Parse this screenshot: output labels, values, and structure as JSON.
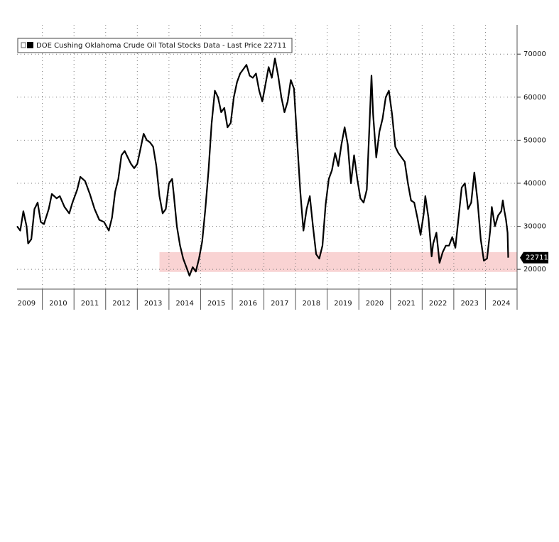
{
  "chart_data": {
    "type": "line",
    "legend_text": "DOE Cushing Oklahoma Crude Oil Total Stocks Data - Last Price 22711",
    "last_price": 22711,
    "series": [
      {
        "name": "DOE Cushing Oklahoma Crude Oil Total Stocks Data",
        "color": "#000000",
        "x": [
          2009.2,
          2009.3,
          2009.4,
          2009.5,
          2009.55,
          2009.65,
          2009.75,
          2009.85,
          2009.95,
          2010.05,
          2010.2,
          2010.3,
          2010.45,
          2010.55,
          2010.7,
          2010.85,
          2010.95,
          2011.1,
          2011.2,
          2011.35,
          2011.5,
          2011.65,
          2011.8,
          2011.95,
          2012.1,
          2012.2,
          2012.3,
          2012.4,
          2012.5,
          2012.6,
          2012.7,
          2012.8,
          2012.9,
          2013.0,
          2013.1,
          2013.2,
          2013.3,
          2013.4,
          2013.5,
          2013.6,
          2013.7,
          2013.8,
          2013.9,
          2014.0,
          2014.1,
          2014.15,
          2014.25,
          2014.35,
          2014.45,
          2014.55,
          2014.65,
          2014.75,
          2014.85,
          2014.95,
          2015.05,
          2015.15,
          2015.25,
          2015.35,
          2015.45,
          2015.55,
          2015.65,
          2015.75,
          2015.85,
          2015.95,
          2016.05,
          2016.15,
          2016.25,
          2016.35,
          2016.45,
          2016.55,
          2016.65,
          2016.75,
          2016.85,
          2016.95,
          2017.05,
          2017.15,
          2017.25,
          2017.35,
          2017.45,
          2017.55,
          2017.65,
          2017.75,
          2017.85,
          2017.95,
          2018.05,
          2018.15,
          2018.25,
          2018.35,
          2018.45,
          2018.55,
          2018.65,
          2018.75,
          2018.85,
          2018.95,
          2019.05,
          2019.15,
          2019.25,
          2019.35,
          2019.45,
          2019.55,
          2019.65,
          2019.75,
          2019.85,
          2019.95,
          2020.05,
          2020.15,
          2020.25,
          2020.35,
          2020.4,
          2020.45,
          2020.55,
          2020.65,
          2020.75,
          2020.85,
          2020.95,
          2021.05,
          2021.15,
          2021.25,
          2021.35,
          2021.45,
          2021.55,
          2021.65,
          2021.75,
          2021.85,
          2021.95,
          2022.05,
          2022.1,
          2022.2,
          2022.3,
          2022.35,
          2022.45,
          2022.55,
          2022.65,
          2022.75,
          2022.85,
          2022.95,
          2023.05,
          2023.15,
          2023.25,
          2023.35,
          2023.45,
          2023.55,
          2023.65,
          2023.75,
          2023.85,
          2023.95,
          2024.05,
          2024.15,
          2024.2,
          2024.3,
          2024.4,
          2024.5,
          2024.55,
          2024.6,
          2024.65,
          2024.7,
          2024.72
        ],
        "values": [
          30000,
          29000,
          33500,
          30000,
          26000,
          27000,
          34000,
          35500,
          31000,
          30500,
          34000,
          37500,
          36500,
          37000,
          34500,
          33000,
          35500,
          38500,
          41500,
          40500,
          37500,
          34000,
          31500,
          31000,
          29000,
          32000,
          38000,
          41000,
          46500,
          47500,
          46000,
          44500,
          43500,
          44500,
          48000,
          51500,
          50000,
          49500,
          48500,
          44000,
          37000,
          33000,
          34000,
          40000,
          41000,
          37500,
          30000,
          25500,
          22500,
          20500,
          18500,
          20500,
          19500,
          22500,
          26500,
          34000,
          43000,
          54000,
          61500,
          60000,
          56500,
          57500,
          53000,
          54000,
          60000,
          63500,
          65500,
          66500,
          67500,
          65000,
          64500,
          65500,
          61500,
          59000,
          63000,
          67000,
          64500,
          69000,
          65000,
          60000,
          56500,
          59000,
          64000,
          62000,
          50000,
          38000,
          29000,
          34000,
          37000,
          30000,
          23500,
          22500,
          25500,
          35000,
          41000,
          43000,
          47000,
          44000,
          49000,
          53000,
          49000,
          40000,
          46500,
          41000,
          36500,
          35500,
          38500,
          56000,
          65000,
          56000,
          46000,
          52000,
          55000,
          60000,
          61500,
          56000,
          48500,
          47000,
          46000,
          45000,
          40000,
          36000,
          35500,
          32000,
          28000,
          33000,
          37000,
          32000,
          23000,
          26000,
          28500,
          21500,
          24000,
          25500,
          25500,
          27500,
          25000,
          32000,
          39000,
          40000,
          34000,
          35500,
          42500,
          36000,
          27000,
          22000,
          22500,
          29000,
          34500,
          30000,
          32500,
          33500,
          36000,
          33500,
          31500,
          28500,
          22711
        ]
      }
    ],
    "highlight": {
      "x": [
        2013.7,
        2025
      ],
      "y": [
        19400,
        24000
      ],
      "color": "#f9d3d3"
    },
    "xlim": [
      2009.2,
      2025
    ],
    "xticks": [
      {
        "value": 2009.5,
        "label": "2009"
      },
      {
        "value": 2010.5,
        "label": "2010"
      },
      {
        "value": 2011.5,
        "label": "2011"
      },
      {
        "value": 2012.5,
        "label": "2012"
      },
      {
        "value": 2013.5,
        "label": "2013"
      },
      {
        "value": 2014.5,
        "label": "2014"
      },
      {
        "value": 2015.5,
        "label": "2015"
      },
      {
        "value": 2016.5,
        "label": "2016"
      },
      {
        "value": 2017.5,
        "label": "2017"
      },
      {
        "value": 2018.5,
        "label": "2018"
      },
      {
        "value": 2019.5,
        "label": "2019"
      },
      {
        "value": 2020.5,
        "label": "2020"
      },
      {
        "value": 2021.5,
        "label": "2021"
      },
      {
        "value": 2022.5,
        "label": "2022"
      },
      {
        "value": 2023.5,
        "label": "2023"
      },
      {
        "value": 2024.5,
        "label": "2024"
      }
    ],
    "ylim": [
      15400,
      76800
    ],
    "yticks": [
      20000,
      30000,
      40000,
      50000,
      60000,
      70000
    ],
    "grid": true
  }
}
